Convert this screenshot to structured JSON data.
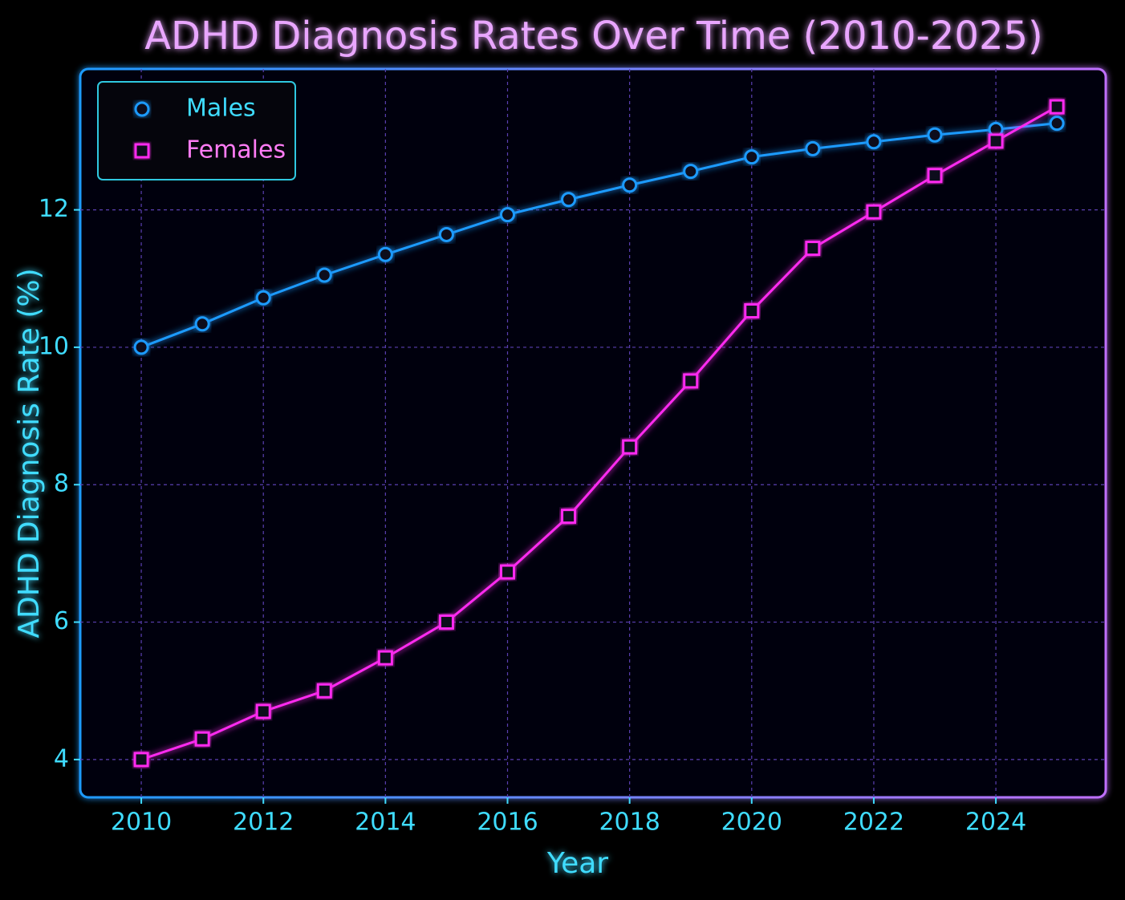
{
  "chart_data": {
    "type": "line",
    "title": "ADHD Diagnosis Rates Over Time (2010-2025)",
    "xlabel": "Year",
    "ylabel": "ADHD Diagnosis Rate (%)",
    "x": [
      2010,
      2011,
      2012,
      2013,
      2014,
      2015,
      2016,
      2017,
      2018,
      2019,
      2020,
      2021,
      2022,
      2023,
      2024,
      2025
    ],
    "series": [
      {
        "name": "Males",
        "color": "#1e9bff",
        "marker": "circle",
        "values": [
          10.0,
          10.34,
          10.72,
          11.05,
          11.35,
          11.64,
          11.93,
          12.15,
          12.36,
          12.56,
          12.77,
          12.89,
          12.99,
          13.09,
          13.17,
          13.26
        ]
      },
      {
        "name": "Females",
        "color": "#ff2bf0",
        "marker": "square",
        "values": [
          4.0,
          4.3,
          4.7,
          5.0,
          5.48,
          6.0,
          6.73,
          7.54,
          8.55,
          9.51,
          10.53,
          11.44,
          11.97,
          12.5,
          13.0,
          13.5
        ]
      }
    ],
    "xlim": [
      2009.0,
      2025.8
    ],
    "xticks": [
      2010,
      2012,
      2014,
      2016,
      2018,
      2020,
      2022,
      2024
    ],
    "ylim": [
      3.45,
      14.05
    ],
    "yticks": [
      4,
      6,
      8,
      10,
      12
    ],
    "grid": true,
    "legend": "upper left"
  }
}
